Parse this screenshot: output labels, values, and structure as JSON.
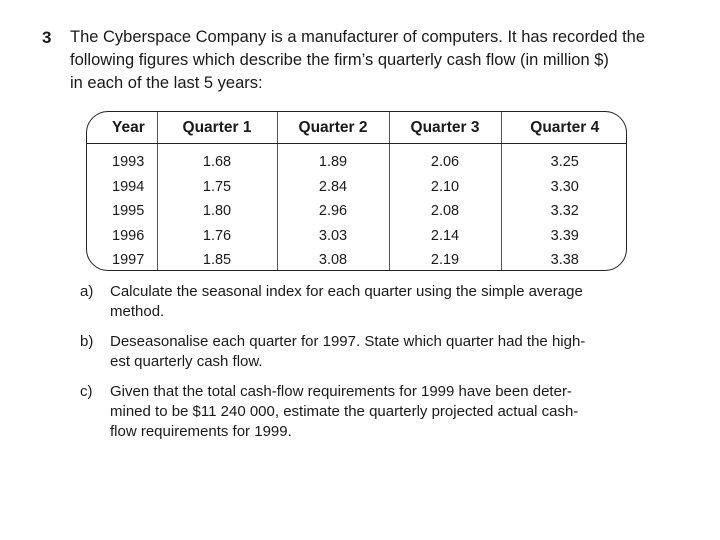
{
  "question": {
    "number": "3",
    "intro_lines": [
      "The Cyberspace Company is a manufacturer of computers. It has recorded the",
      "following figures which describe the firm’s quarterly cash flow (in million $)",
      "in each of the last 5 years:"
    ]
  },
  "table": {
    "headers": [
      "Year",
      "Quarter 1",
      "Quarter 2",
      "Quarter 3",
      "Quarter 4"
    ],
    "rows": [
      [
        "1993",
        "1.68",
        "1.89",
        "2.06",
        "3.25"
      ],
      [
        "1994",
        "1.75",
        "2.84",
        "2.10",
        "3.30"
      ],
      [
        "1995",
        "1.80",
        "2.96",
        "2.08",
        "3.32"
      ],
      [
        "1996",
        "1.76",
        "3.03",
        "2.14",
        "3.39"
      ],
      [
        "1997",
        "1.85",
        "3.08",
        "2.19",
        "3.38"
      ]
    ]
  },
  "parts": [
    {
      "label": "a)",
      "lines": [
        "Calculate the seasonal index for each quarter using the simple average",
        "method."
      ]
    },
    {
      "label": "b)",
      "lines": [
        "Deseasonalise each quarter for 1997. State which quarter had the high-",
        "est quarterly cash flow."
      ]
    },
    {
      "label": "c)",
      "lines": [
        "Given that the total cash-flow requirements for 1999 have been deter-",
        "mined to be $11 240 000, estimate the quarterly projected actual cash-",
        "flow requirements for 1999."
      ]
    }
  ]
}
